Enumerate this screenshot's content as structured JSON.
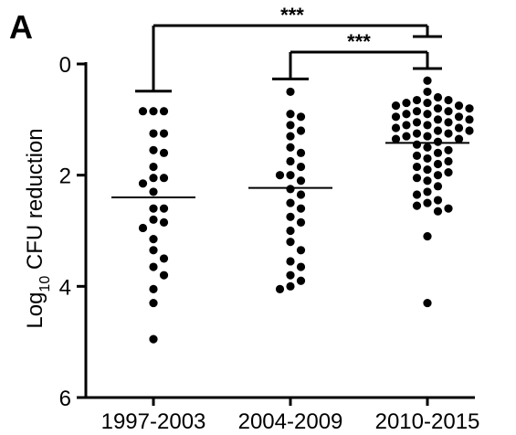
{
  "panel_label": "A",
  "chart_data": {
    "type": "scatter",
    "subtype": "dot-plot",
    "ylabel": "Log10 CFU reduction",
    "ylabel_main": "Log",
    "ylabel_sub": "10",
    "ylabel_rest": " CFU reduction",
    "y_axis_inverted": true,
    "ylim": [
      0,
      6
    ],
    "yticks": [
      0,
      2,
      4,
      6
    ],
    "ytick_labels": [
      "0",
      "2",
      "4",
      "6"
    ],
    "categories": [
      "1997-2003",
      "2004-2009",
      "2010-2015"
    ],
    "marker_color": "#000000",
    "groups": [
      {
        "category": "1997-2003",
        "mean": 2.4,
        "values": [
          0.85,
          0.85,
          0.85,
          1.25,
          1.25,
          1.55,
          1.6,
          1.85,
          2.05,
          2.05,
          2.15,
          2.3,
          2.6,
          2.6,
          2.8,
          2.85,
          2.95,
          3.15,
          3.35,
          3.5,
          3.65,
          3.8,
          4.05,
          4.3,
          4.95
        ]
      },
      {
        "category": "2004-2009",
        "mean": 2.23,
        "values": [
          0.5,
          0.9,
          0.95,
          1.1,
          1.2,
          1.3,
          1.5,
          1.6,
          1.75,
          1.85,
          2.0,
          2.0,
          2.1,
          2.25,
          2.35,
          2.5,
          2.6,
          2.75,
          2.85,
          3.0,
          3.2,
          3.35,
          3.55,
          3.65,
          3.8,
          3.9,
          4.0,
          4.05
        ]
      },
      {
        "category": "2010-2015",
        "mean": 1.42,
        "values": [
          0.3,
          0.5,
          0.6,
          0.65,
          0.65,
          0.7,
          0.7,
          0.75,
          0.75,
          0.8,
          0.8,
          0.85,
          0.85,
          0.9,
          0.9,
          0.95,
          0.95,
          1.0,
          1.0,
          1.05,
          1.05,
          1.1,
          1.1,
          1.15,
          1.15,
          1.2,
          1.2,
          1.25,
          1.25,
          1.3,
          1.3,
          1.35,
          1.35,
          1.4,
          1.45,
          1.5,
          1.55,
          1.6,
          1.65,
          1.7,
          1.75,
          1.8,
          1.85,
          1.9,
          1.95,
          2.0,
          2.05,
          2.1,
          2.2,
          2.3,
          2.35,
          2.45,
          2.5,
          2.55,
          2.6,
          2.65,
          3.1,
          4.3
        ]
      }
    ],
    "significance": [
      {
        "from": "1997-2003",
        "to": "2010-2015",
        "label": "***"
      },
      {
        "from": "2004-2009",
        "to": "2010-2015",
        "label": "***"
      }
    ]
  }
}
